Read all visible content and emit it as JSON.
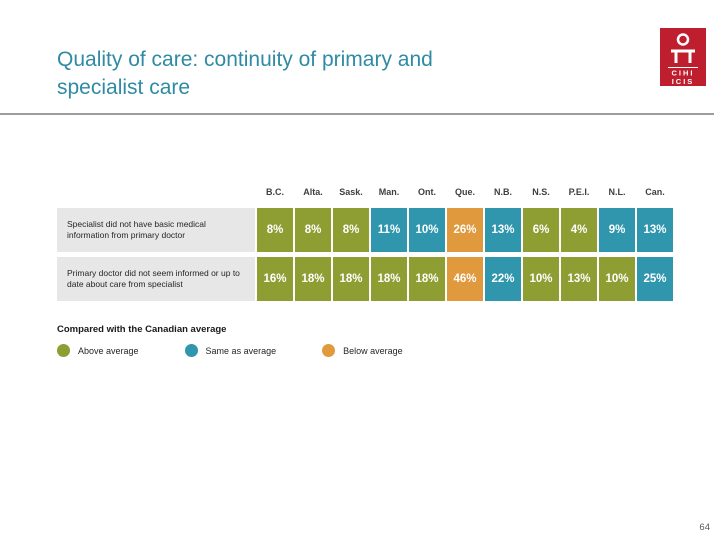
{
  "slide": {
    "title": "Quality of care: continuity of primary and specialist care",
    "page_number": "64"
  },
  "logo": {
    "line1": "CIHI",
    "line2": "ICIS"
  },
  "chart_data": {
    "type": "table",
    "title": "Quality of care: continuity of primary and specialist care",
    "columns": [
      "B.C.",
      "Alta.",
      "Sask.",
      "Man.",
      "Ont.",
      "Que.",
      "N.B.",
      "N.S.",
      "P.E.I.",
      "N.L.",
      "Can."
    ],
    "rows": [
      {
        "label": "Specialist did not have basic medical information from primary doctor",
        "values": [
          8,
          8,
          8,
          11,
          10,
          26,
          13,
          6,
          4,
          9,
          13
        ],
        "labels": [
          "8%",
          "8%",
          "8%",
          "11%",
          "10%",
          "26%",
          "13%",
          "6%",
          "4%",
          "9%",
          "13%"
        ],
        "status": [
          "above",
          "above",
          "above",
          "same",
          "same",
          "below",
          "same",
          "above",
          "above",
          "same",
          "same"
        ]
      },
      {
        "label": "Primary doctor did not seem informed or up to date about care from specialist",
        "values": [
          16,
          18,
          18,
          18,
          18,
          46,
          22,
          10,
          13,
          10,
          25
        ],
        "labels": [
          "16%",
          "18%",
          "18%",
          "18%",
          "18%",
          "46%",
          "22%",
          "10%",
          "13%",
          "10%",
          "25%"
        ],
        "status": [
          "above",
          "above",
          "above",
          "above",
          "above",
          "below",
          "same",
          "above",
          "above",
          "above",
          "same"
        ]
      }
    ],
    "legend_position": "bottom-left"
  },
  "legend": {
    "title": "Compared with the Canadian average",
    "items": [
      {
        "label": "Above average",
        "status": "above"
      },
      {
        "label": "Same as average",
        "status": "same"
      },
      {
        "label": "Below average",
        "status": "below"
      }
    ]
  },
  "colors": {
    "accent": "#2f8ba3",
    "above": "#8f9e33",
    "same": "#2f96ae",
    "below": "#e0993c",
    "logo_red": "#bf1e2e",
    "row_label_bg": "#e7e7e8"
  }
}
